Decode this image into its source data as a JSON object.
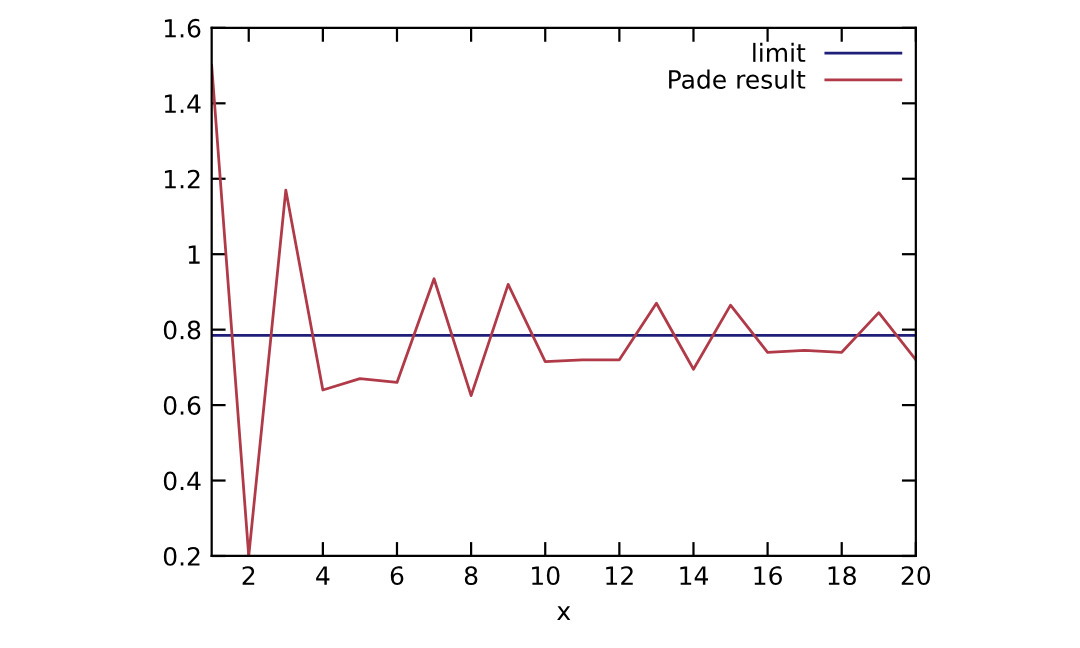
{
  "chart_data": {
    "type": "line",
    "xlabel": "x",
    "xlim": [
      1,
      20
    ],
    "xticks": [
      2,
      4,
      6,
      8,
      10,
      12,
      14,
      16,
      18,
      20
    ],
    "ylim": [
      0.2,
      1.6
    ],
    "yticks": [
      0.2,
      0.4,
      0.6,
      0.8,
      1,
      1.2,
      1.4,
      1.6
    ],
    "grid": false,
    "legend": "top right",
    "series": [
      {
        "name": "limit",
        "color": "#1f1f7a",
        "x": [
          1,
          20
        ],
        "values": [
          0.785,
          0.785
        ]
      },
      {
        "name": "Pade result",
        "color": "#b03a48",
        "x": [
          1,
          2,
          3,
          4,
          5,
          6,
          7,
          8,
          9,
          10,
          11,
          12,
          13,
          14,
          15,
          16,
          17,
          18,
          19,
          20
        ],
        "values": [
          1.5,
          0.2,
          1.17,
          0.64,
          0.67,
          0.66,
          0.935,
          0.625,
          0.92,
          0.715,
          0.72,
          0.72,
          0.87,
          0.695,
          0.865,
          0.74,
          0.745,
          0.74,
          0.845,
          0.72
        ]
      }
    ]
  }
}
